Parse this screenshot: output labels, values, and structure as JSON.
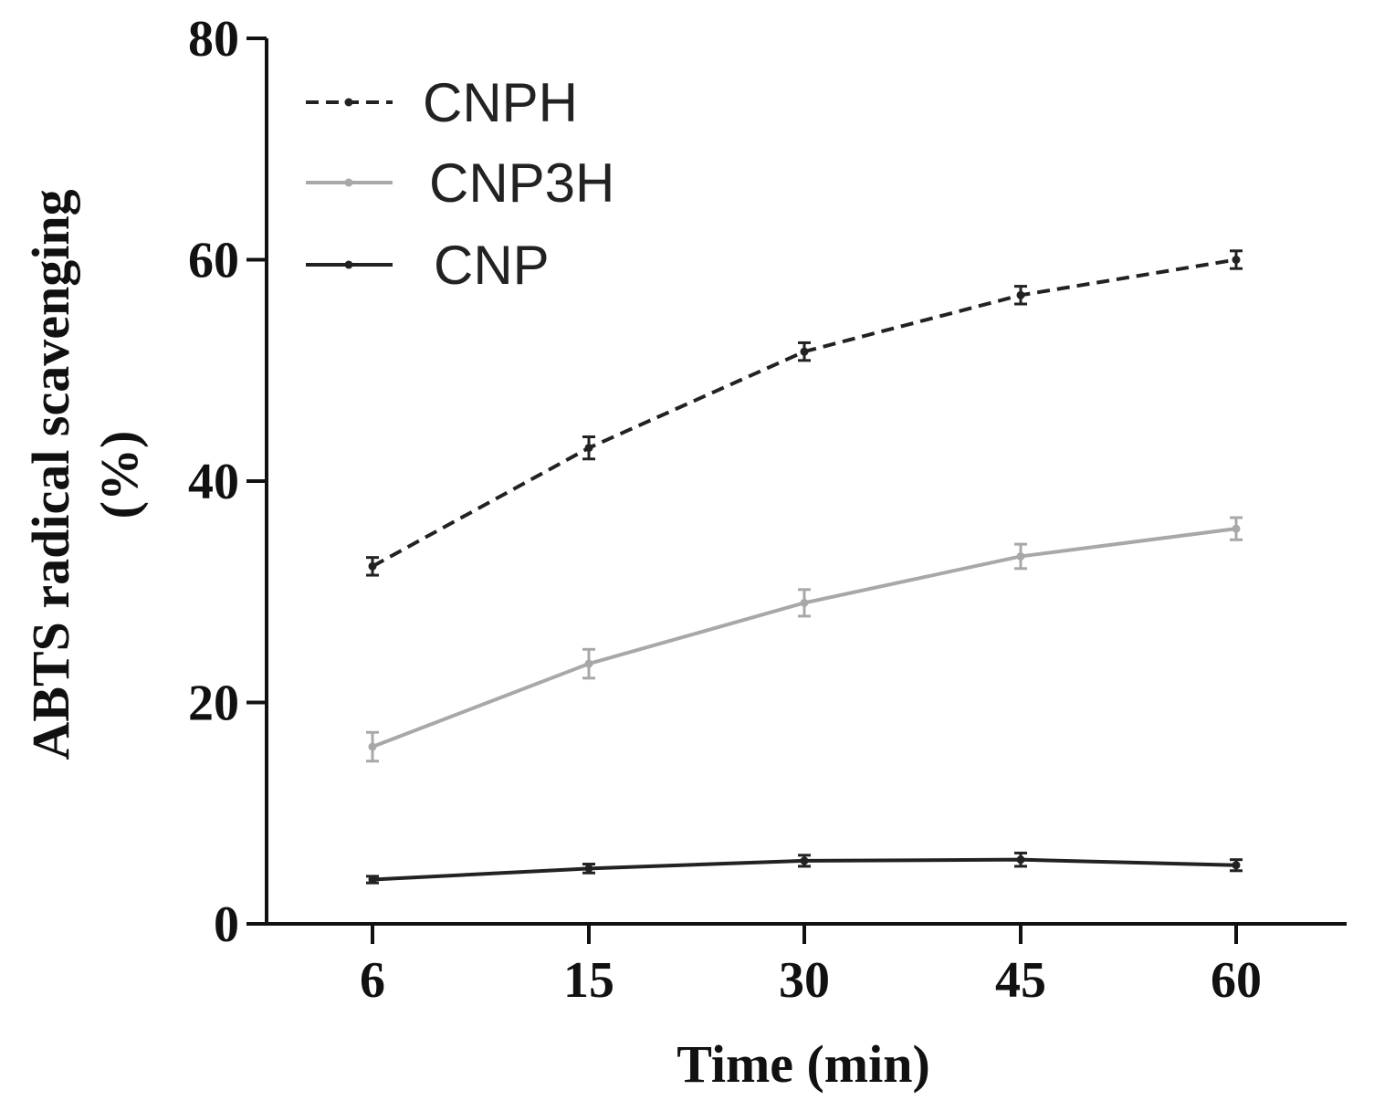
{
  "chart_data": {
    "type": "line",
    "title": "",
    "xlabel": "Time (min)",
    "ylabel_line1": "ABTS radical scavenging",
    "ylabel_line2": "(%)",
    "categories": [
      "6",
      "15",
      "30",
      "45",
      "60"
    ],
    "ylim": [
      0,
      80
    ],
    "yticks": [
      "0",
      "20",
      "40",
      "60",
      "80"
    ],
    "grid": false,
    "legend_position": "top-left",
    "series": [
      {
        "name": "CNPH",
        "values": [
          32.3,
          43.0,
          51.7,
          56.8,
          60.0
        ],
        "errors": [
          0.8,
          1.0,
          0.8,
          0.8,
          0.8
        ],
        "color": "#222222",
        "style": "dashed"
      },
      {
        "name": "CNP3H",
        "values": [
          16.0,
          23.5,
          29.0,
          33.2,
          35.7
        ],
        "errors": [
          1.3,
          1.3,
          1.2,
          1.1,
          1.0
        ],
        "color": "#a8a8a8",
        "style": "solid"
      },
      {
        "name": "CNP",
        "values": [
          4.0,
          5.0,
          5.7,
          5.8,
          5.3
        ],
        "errors": [
          0.3,
          0.4,
          0.5,
          0.6,
          0.5
        ],
        "color": "#222222",
        "style": "solid"
      }
    ]
  }
}
